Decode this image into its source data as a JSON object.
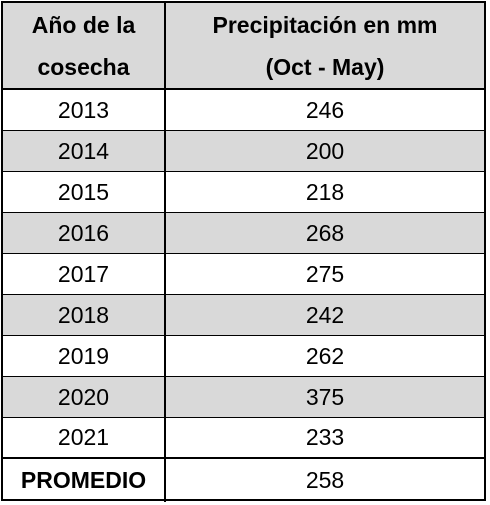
{
  "table": {
    "header": {
      "col1": [
        "Año de la",
        "cosecha"
      ],
      "col2": [
        "Precipitación en mm",
        "(Oct - May)"
      ]
    },
    "rows": [
      {
        "year": "2013",
        "value": "246"
      },
      {
        "year": "2014",
        "value": "200"
      },
      {
        "year": "2015",
        "value": "218"
      },
      {
        "year": "2016",
        "value": "268"
      },
      {
        "year": "2017",
        "value": "275"
      },
      {
        "year": "2018",
        "value": "242"
      },
      {
        "year": "2019",
        "value": "262"
      },
      {
        "year": "2020",
        "value": "375"
      },
      {
        "year": "2021",
        "value": "233"
      }
    ],
    "footer": {
      "label": "PROMEDIO",
      "value": "258"
    }
  },
  "colors": {
    "shade": "#d9d9d9",
    "border": "#000000"
  }
}
